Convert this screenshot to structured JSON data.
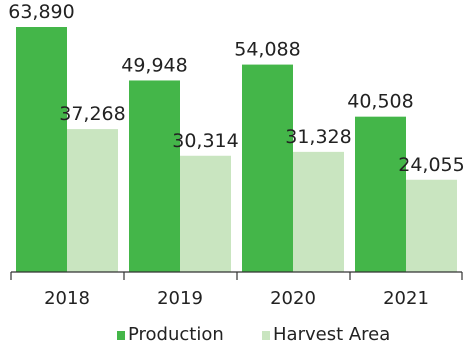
{
  "chart_data": {
    "type": "bar",
    "categories": [
      "2018",
      "2019",
      "2020",
      "2021"
    ],
    "series": [
      {
        "name": "Production",
        "color": "#44b649",
        "values": [
          63890,
          49948,
          54088,
          40508
        ],
        "labels": [
          "63,890",
          "49,948",
          "54,088",
          "40,508"
        ]
      },
      {
        "name": "Harvest Area",
        "color": "#c9e5c0",
        "values": [
          37268,
          30314,
          31328,
          24055
        ],
        "labels": [
          "37,268",
          "30,314",
          "31,328",
          "24,055"
        ]
      }
    ],
    "ylim": [
      0,
      70000
    ],
    "grid": false,
    "legend_position": "bottom-center"
  }
}
